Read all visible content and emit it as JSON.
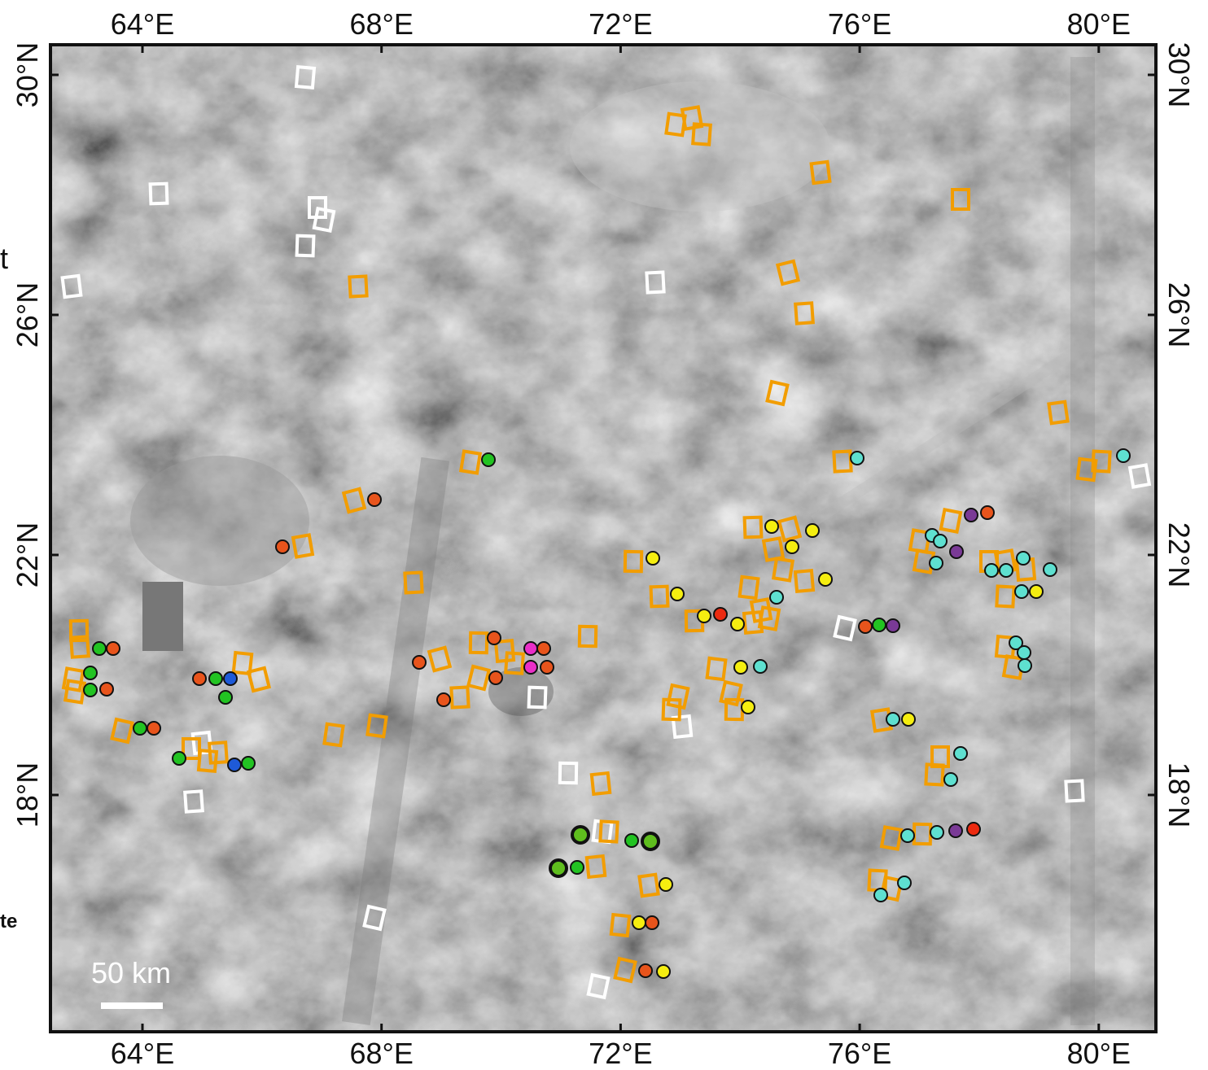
{
  "map": {
    "lon_ticks": [
      {
        "value": 64,
        "label": "64°E"
      },
      {
        "value": 68,
        "label": "68°E"
      },
      {
        "value": 72,
        "label": "72°E"
      },
      {
        "value": 76,
        "label": "76°E"
      },
      {
        "value": 80,
        "label": "80°E"
      }
    ],
    "lat_ticks": [
      {
        "value": 30,
        "label": "30°N"
      },
      {
        "value": 26,
        "label": "26°N"
      },
      {
        "value": 22,
        "label": "22°N"
      },
      {
        "value": 18,
        "label": "18°N"
      }
    ],
    "scale_bar": "50 km",
    "edge_fragments": [
      "t",
      "te"
    ]
  }
}
